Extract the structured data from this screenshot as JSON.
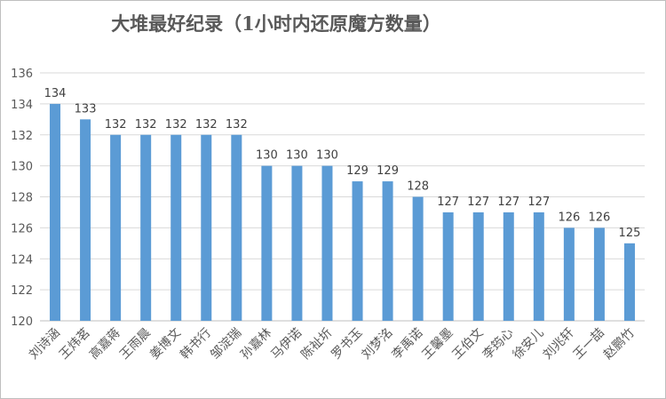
{
  "chart_data": {
    "type": "bar",
    "title": "大堆最好纪录（1小时内还原魔方数量）",
    "categories": [
      "刘诗涵",
      "王炜茗",
      "高嘉蒋",
      "王雨晨",
      "姜博文",
      "韩书行",
      "邹淀瑞",
      "孙嘉林",
      "马伊诺",
      "陈祉圻",
      "罗书玉",
      "刘梦洺",
      "李禹诺",
      "王馨墨",
      "王伯文",
      "李筠心",
      "徐安儿",
      "刘兆轩",
      "王一喆",
      "赵鹏竹"
    ],
    "values": [
      134,
      133,
      132,
      132,
      132,
      132,
      132,
      130,
      130,
      130,
      129,
      129,
      128,
      127,
      127,
      127,
      127,
      126,
      126,
      125
    ],
    "ylim": [
      120,
      136
    ],
    "yticks": [
      120,
      122,
      124,
      126,
      128,
      130,
      132,
      134,
      136
    ],
    "xlabel": "",
    "ylabel": "",
    "grid": true,
    "legend": "none",
    "bar_color": "#5b9bd5",
    "data_labels": true
  }
}
